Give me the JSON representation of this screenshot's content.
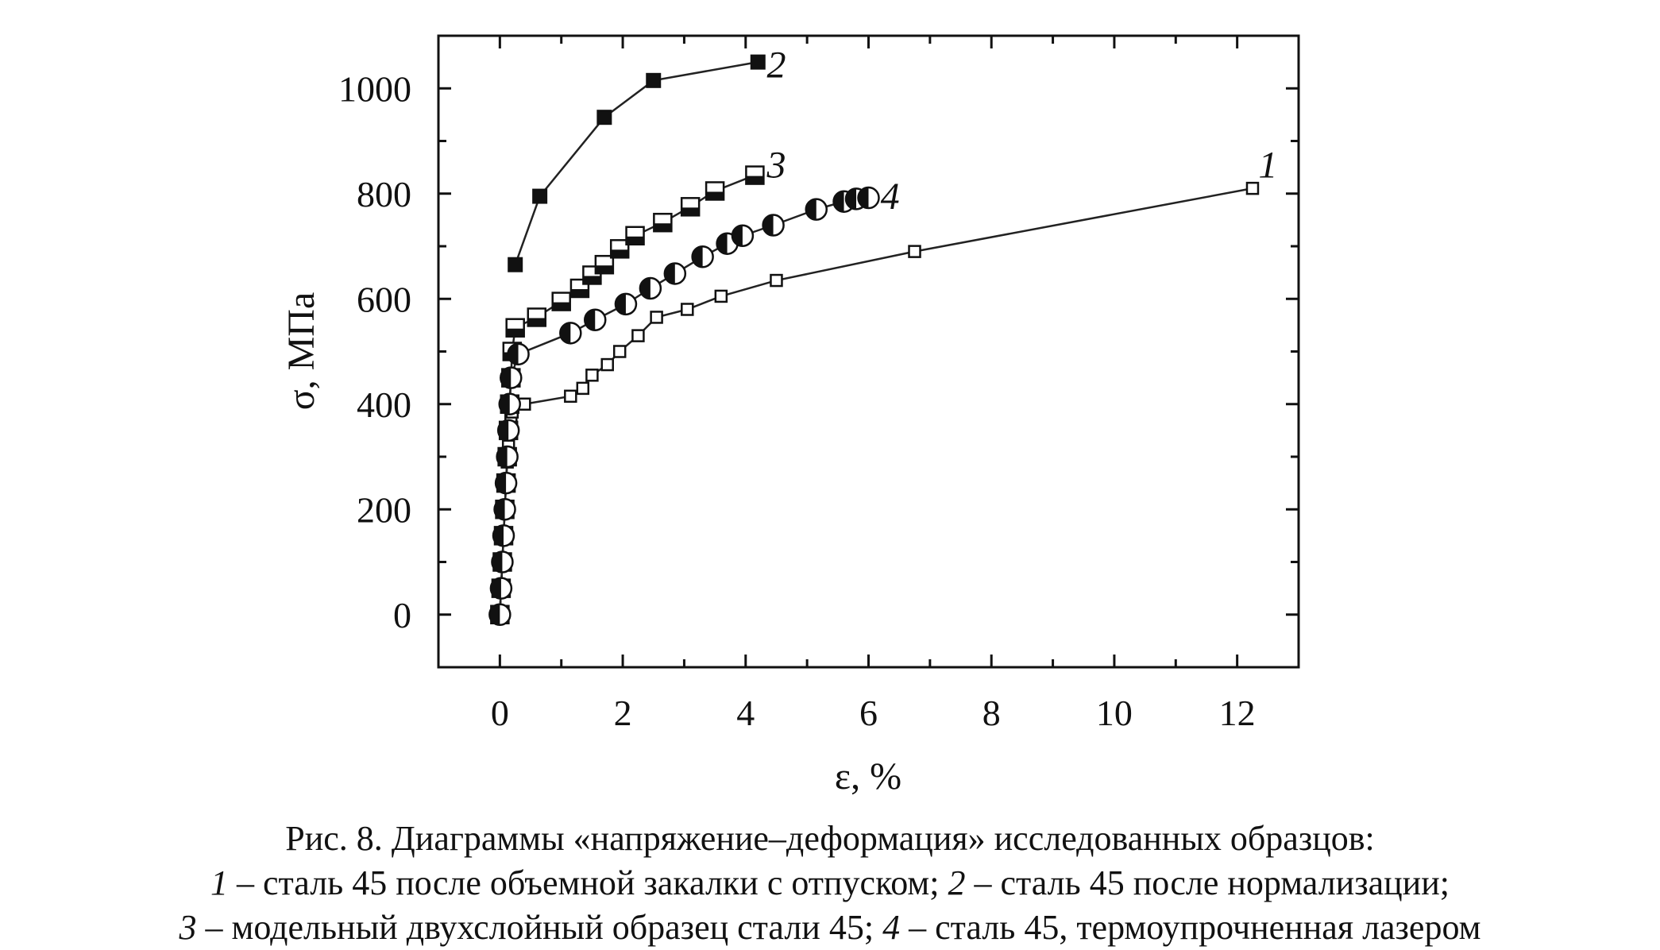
{
  "chart_data": {
    "type": "scatter",
    "xlabel": "ε, %",
    "ylabel": "σ, МПа",
    "xlim": [
      -1,
      13
    ],
    "ylim": [
      -100,
      1100
    ],
    "xticks": [
      0,
      2,
      4,
      6,
      8,
      10,
      12
    ],
    "yticks": [
      0,
      200,
      400,
      600,
      800,
      1000
    ],
    "grid": false,
    "legend": "none",
    "series": [
      {
        "name": "1",
        "marker": "square-open",
        "connected": true,
        "x": [
          0,
          0.02,
          0.04,
          0.06,
          0.08,
          0.1,
          0.12,
          0.14,
          0.16,
          0.18,
          0.2,
          0.4,
          1.15,
          1.35,
          1.5,
          1.75,
          1.95,
          2.25,
          2.55,
          3.05,
          3.6,
          4.5,
          6.75,
          12.25
        ],
        "y": [
          0,
          50,
          100,
          150,
          200,
          250,
          290,
          320,
          350,
          370,
          385,
          400,
          415,
          430,
          455,
          475,
          500,
          530,
          565,
          580,
          605,
          635,
          690,
          810
        ]
      },
      {
        "name": "2",
        "marker": "square-filled",
        "connected": true,
        "x": [
          0.25,
          0.65,
          1.7,
          2.5,
          4.2
        ],
        "y": [
          665,
          795,
          945,
          1015,
          1050
        ]
      },
      {
        "name": "3",
        "marker": "square-half",
        "connected": true,
        "x": [
          0,
          0.02,
          0.04,
          0.06,
          0.08,
          0.1,
          0.12,
          0.14,
          0.16,
          0.18,
          0.2,
          0.25,
          0.6,
          1.0,
          1.3,
          1.5,
          1.7,
          1.95,
          2.2,
          2.65,
          3.1,
          3.5,
          4.15
        ],
        "y": [
          0,
          50,
          100,
          150,
          200,
          250,
          300,
          350,
          400,
          450,
          500,
          545,
          565,
          595,
          620,
          645,
          665,
          695,
          720,
          745,
          775,
          805,
          835
        ]
      },
      {
        "name": "4",
        "marker": "circle-half",
        "connected": true,
        "x": [
          0,
          0.02,
          0.04,
          0.06,
          0.08,
          0.1,
          0.12,
          0.14,
          0.16,
          0.18,
          0.3,
          1.15,
          1.55,
          2.05,
          2.45,
          2.85,
          3.3,
          3.7,
          3.95,
          4.45,
          5.15,
          5.6,
          5.8,
          6.0
        ],
        "y": [
          0,
          50,
          100,
          150,
          200,
          250,
          300,
          350,
          400,
          450,
          495,
          535,
          560,
          590,
          620,
          648,
          680,
          705,
          720,
          740,
          770,
          785,
          790,
          792
        ]
      }
    ],
    "series_tags": [
      {
        "text": "1",
        "x": 12.5,
        "y": 855
      },
      {
        "text": "2",
        "x": 4.5,
        "y": 1045
      },
      {
        "text": "3",
        "x": 4.5,
        "y": 855
      },
      {
        "text": "4",
        "x": 6.35,
        "y": 795
      }
    ]
  },
  "caption": {
    "line1": "Рис. 8. Диаграммы «напряжение–деформация» исследованных образцов:",
    "l2_n1": "1",
    "l2_t1": " – сталь 45 после объемной закалки с отпуском; ",
    "l2_n2": "2",
    "l2_t2": " – сталь 45 после нормализации;",
    "l3_n1": "3",
    "l3_t1": " – модельный двухслойный образец стали 45; ",
    "l3_n2": "4",
    "l3_t2": " – сталь 45, термоупрочненная лазером"
  }
}
